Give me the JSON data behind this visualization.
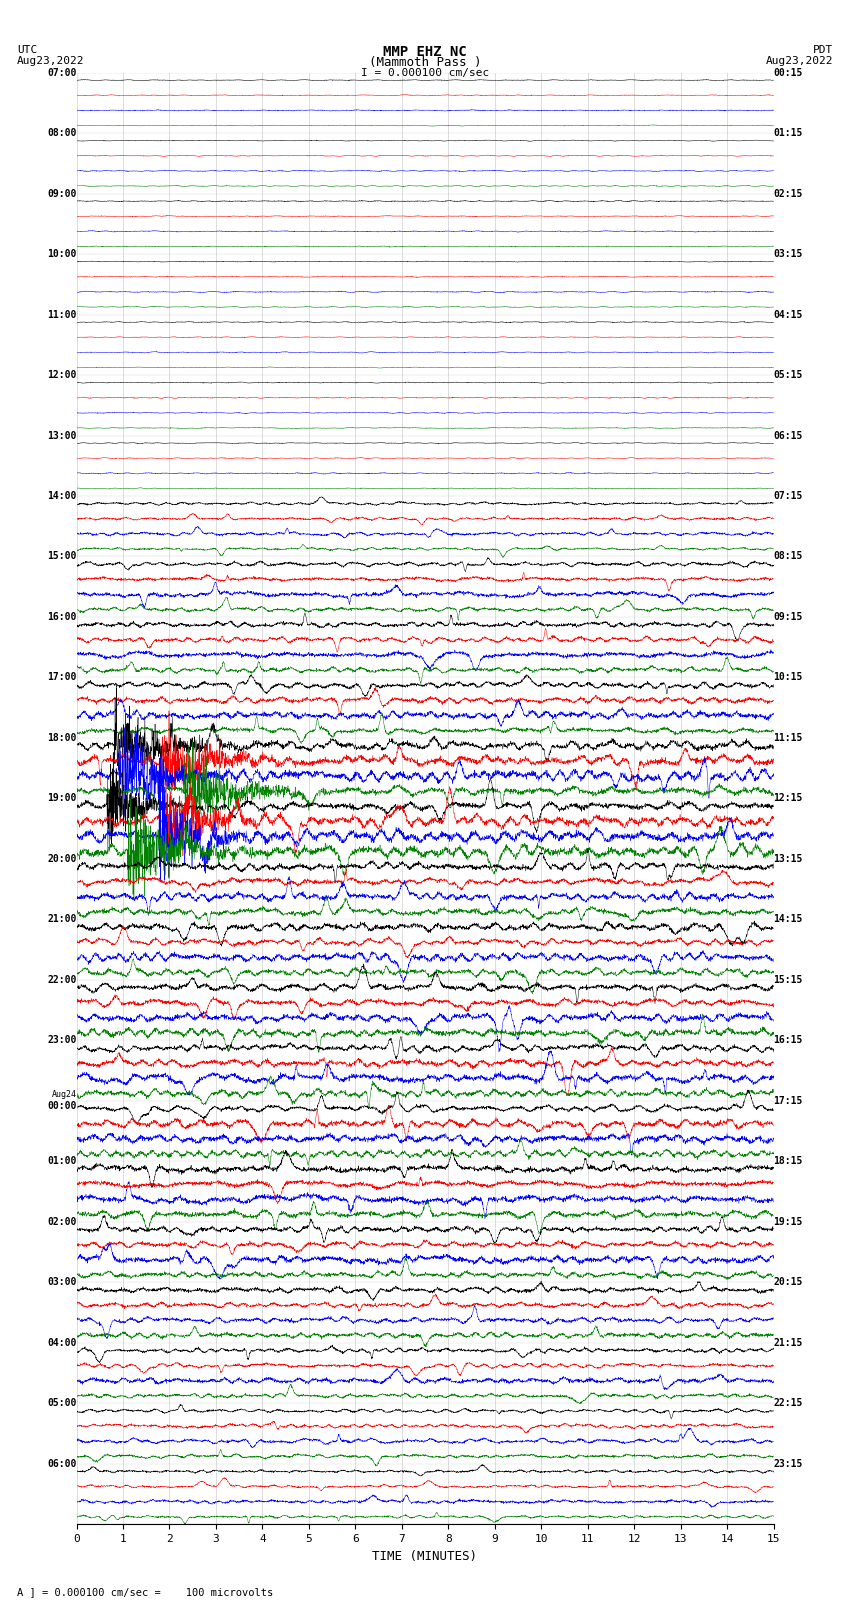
{
  "title_line1": "MMP EHZ NC",
  "title_line2": "(Mammoth Pass )",
  "title_line3": "I = 0.000100 cm/sec",
  "left_header_line1": "UTC",
  "left_header_line2": "Aug23,2022",
  "right_header_line1": "PDT",
  "right_header_line2": "Aug23,2022",
  "xlabel": "TIME (MINUTES)",
  "footnote": "A ] = 0.000100 cm/sec =    100 microvolts",
  "utc_times": [
    "07:00",
    "08:00",
    "09:00",
    "10:00",
    "11:00",
    "12:00",
    "13:00",
    "14:00",
    "15:00",
    "16:00",
    "17:00",
    "18:00",
    "19:00",
    "20:00",
    "21:00",
    "22:00",
    "23:00",
    "Aug24\n00:00",
    "01:00",
    "02:00",
    "03:00",
    "04:00",
    "05:00",
    "06:00"
  ],
  "pdt_times": [
    "00:15",
    "01:15",
    "02:15",
    "03:15",
    "04:15",
    "05:15",
    "06:15",
    "07:15",
    "08:15",
    "09:15",
    "10:15",
    "11:15",
    "12:15",
    "13:15",
    "14:15",
    "15:15",
    "16:15",
    "17:15",
    "18:15",
    "19:15",
    "20:15",
    "21:15",
    "22:15",
    "23:15"
  ],
  "n_rows": 24,
  "traces_per_row": 4,
  "colors": [
    "black",
    "red",
    "blue",
    "green"
  ],
  "bg_color": "white",
  "grid_color": "#999999",
  "x_min": 0,
  "x_max": 15,
  "x_ticks": [
    0,
    1,
    2,
    3,
    4,
    5,
    6,
    7,
    8,
    9,
    10,
    11,
    12,
    13,
    14,
    15
  ],
  "amplitude_by_row": [
    0.012,
    0.012,
    0.012,
    0.012,
    0.012,
    0.012,
    0.012,
    0.035,
    0.06,
    0.07,
    0.08,
    0.12,
    0.15,
    0.1,
    0.1,
    0.1,
    0.1,
    0.1,
    0.1,
    0.08,
    0.07,
    0.06,
    0.05,
    0.04
  ],
  "very_active_rows": [
    11,
    12
  ],
  "moderately_active_rows": [
    7,
    8,
    9,
    10,
    13,
    14,
    15,
    16,
    17,
    18,
    19,
    20,
    21,
    22,
    23
  ]
}
